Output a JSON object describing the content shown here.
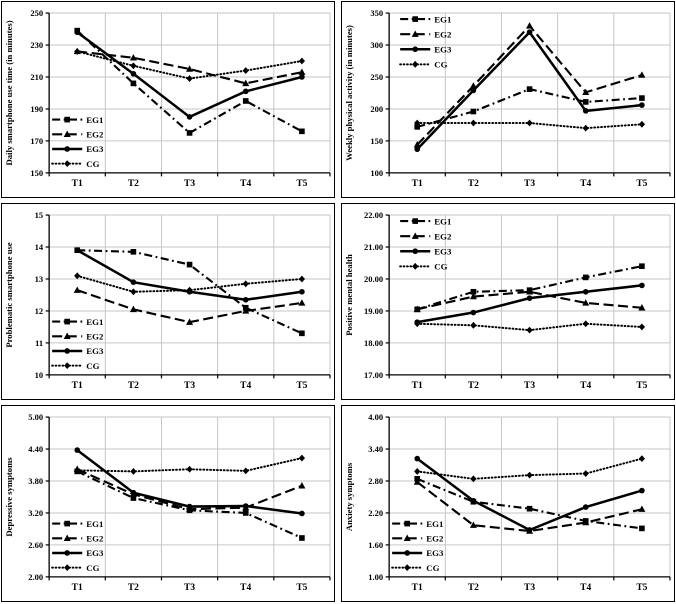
{
  "page": {
    "background": "#ffffff"
  },
  "colors": {
    "line": "#000000",
    "grid": "#c6c6c6",
    "panel_border": "#000000",
    "plot_bg": "#ffffff"
  },
  "legend_labels": [
    "EG1",
    "EG2",
    "EG3",
    "CG"
  ],
  "chart_data": [
    {
      "type": "line",
      "ylabel": "Daily smartphone use time (in minutes)",
      "xlabel": "",
      "categories": [
        "T1",
        "T2",
        "T3",
        "T4",
        "T5"
      ],
      "ylim": [
        150,
        250
      ],
      "ytick_step": 20,
      "ytick_decimals": 0,
      "grid": true,
      "legend_position": "bottom-left",
      "series": [
        {
          "name": "EG1",
          "line_style": "dashdot",
          "marker": "square",
          "values": [
            239,
            206,
            175,
            195,
            176
          ]
        },
        {
          "name": "EG2",
          "line_style": "dash",
          "marker": "triangle",
          "values": [
            226,
            222,
            215,
            206,
            213
          ]
        },
        {
          "name": "EG3",
          "line_style": "solid",
          "marker": "circle",
          "values": [
            238,
            212,
            185,
            201,
            210
          ]
        },
        {
          "name": "CG",
          "line_style": "dot",
          "marker": "diamond",
          "values": [
            226,
            217,
            209,
            214,
            220
          ]
        }
      ]
    },
    {
      "type": "line",
      "ylabel": "Weekly physical activity (in minutes)",
      "xlabel": "",
      "categories": [
        "T1",
        "T2",
        "T3",
        "T4",
        "T5"
      ],
      "ylim": [
        100,
        350
      ],
      "ytick_step": 50,
      "ytick_decimals": 0,
      "grid": true,
      "legend_position": "top-left",
      "series": [
        {
          "name": "EG1",
          "line_style": "dashdot",
          "marker": "square",
          "values": [
            172,
            196,
            231,
            211,
            217
          ]
        },
        {
          "name": "EG2",
          "line_style": "dash",
          "marker": "triangle",
          "values": [
            144,
            236,
            330,
            226,
            253
          ]
        },
        {
          "name": "EG3",
          "line_style": "solid",
          "marker": "circle",
          "values": [
            137,
            229,
            320,
            197,
            206
          ]
        },
        {
          "name": "CG",
          "line_style": "dot",
          "marker": "diamond",
          "values": [
            178,
            178,
            178,
            170,
            176
          ]
        }
      ]
    },
    {
      "type": "line",
      "ylabel": "Problematic smartphone use",
      "xlabel": "",
      "categories": [
        "T1",
        "T2",
        "T3",
        "T4",
        "T5"
      ],
      "ylim": [
        10,
        15
      ],
      "ytick_step": 1,
      "ytick_decimals": 0,
      "grid": true,
      "legend_position": "bottom-left",
      "series": [
        {
          "name": "EG1",
          "line_style": "dashdot",
          "marker": "square",
          "values": [
            13.9,
            13.85,
            13.45,
            12.1,
            11.3
          ]
        },
        {
          "name": "EG2",
          "line_style": "dash",
          "marker": "triangle",
          "values": [
            12.65,
            12.05,
            11.65,
            12.0,
            12.25
          ]
        },
        {
          "name": "EG3",
          "line_style": "solid",
          "marker": "circle",
          "values": [
            13.9,
            12.9,
            12.6,
            12.35,
            12.6
          ]
        },
        {
          "name": "CG",
          "line_style": "dot",
          "marker": "diamond",
          "values": [
            13.1,
            12.6,
            12.65,
            12.85,
            13.0
          ]
        }
      ]
    },
    {
      "type": "line",
      "ylabel": "Positive mental health",
      "xlabel": "",
      "categories": [
        "T1",
        "T2",
        "T3",
        "T4",
        "T5"
      ],
      "ylim": [
        17,
        22
      ],
      "ytick_step": 1,
      "ytick_decimals": 2,
      "grid": true,
      "legend_position": "top-left",
      "series": [
        {
          "name": "EG1",
          "line_style": "dashdot",
          "marker": "square",
          "values": [
            19.05,
            19.6,
            19.65,
            20.05,
            20.4
          ]
        },
        {
          "name": "EG2",
          "line_style": "dash",
          "marker": "triangle",
          "values": [
            19.05,
            19.45,
            19.6,
            19.25,
            19.1
          ]
        },
        {
          "name": "EG3",
          "line_style": "solid",
          "marker": "circle",
          "values": [
            18.65,
            18.95,
            19.4,
            19.6,
            19.8
          ]
        },
        {
          "name": "CG",
          "line_style": "dot",
          "marker": "diamond",
          "values": [
            18.6,
            18.55,
            18.4,
            18.6,
            18.5
          ]
        }
      ]
    },
    {
      "type": "line",
      "ylabel": "Depressive symptoms",
      "xlabel": "",
      "categories": [
        "T1",
        "T2",
        "T3",
        "T4",
        "T5"
      ],
      "ylim": [
        2,
        5
      ],
      "ytick_step": 0.6,
      "ytick_decimals": 2,
      "grid": true,
      "legend_position": "bottom-left",
      "series": [
        {
          "name": "EG1",
          "line_style": "dashdot",
          "marker": "square",
          "values": [
            3.98,
            3.48,
            3.25,
            3.2,
            2.73
          ]
        },
        {
          "name": "EG2",
          "line_style": "dash",
          "marker": "triangle",
          "values": [
            4.02,
            3.55,
            3.27,
            3.3,
            3.71
          ]
        },
        {
          "name": "EG3",
          "line_style": "solid",
          "marker": "circle",
          "values": [
            4.38,
            3.58,
            3.32,
            3.33,
            3.19
          ]
        },
        {
          "name": "CG",
          "line_style": "dot",
          "marker": "diamond",
          "values": [
            4.0,
            3.98,
            4.02,
            3.99,
            4.23
          ]
        }
      ]
    },
    {
      "type": "line",
      "ylabel": "Anxiety symptoms",
      "xlabel": "",
      "categories": [
        "T1",
        "T2",
        "T3",
        "T4",
        "T5"
      ],
      "ylim": [
        1,
        4
      ],
      "ytick_step": 0.6,
      "ytick_decimals": 2,
      "grid": true,
      "legend_position": "bottom-left",
      "series": [
        {
          "name": "EG1",
          "line_style": "dashdot",
          "marker": "square",
          "values": [
            2.84,
            2.41,
            2.28,
            2.05,
            1.91
          ]
        },
        {
          "name": "EG2",
          "line_style": "dash",
          "marker": "triangle",
          "values": [
            2.78,
            1.97,
            1.86,
            2.02,
            2.27
          ]
        },
        {
          "name": "EG3",
          "line_style": "solid",
          "marker": "circle",
          "values": [
            3.22,
            2.43,
            1.88,
            2.31,
            2.62
          ]
        },
        {
          "name": "CG",
          "line_style": "dot",
          "marker": "diamond",
          "values": [
            2.98,
            2.84,
            2.91,
            2.94,
            3.22
          ]
        }
      ]
    }
  ]
}
